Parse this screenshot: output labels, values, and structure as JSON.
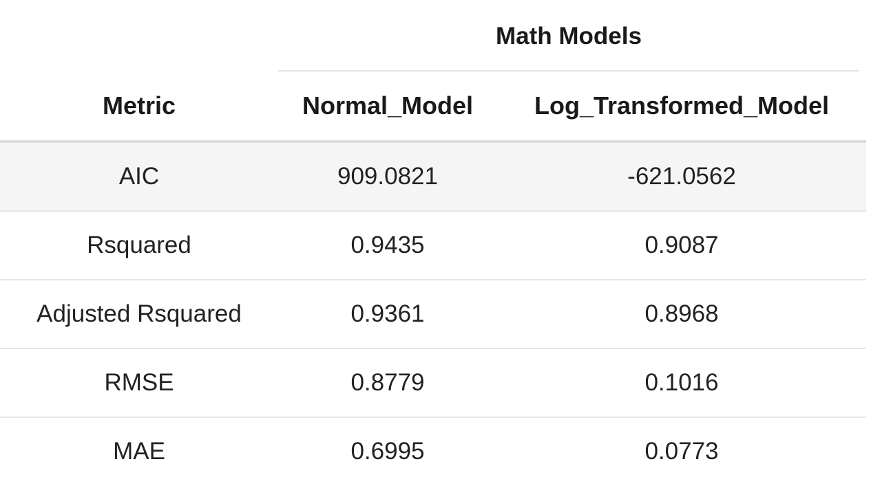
{
  "table": {
    "spanner_label": "Math Models",
    "columns": [
      "Metric",
      "Normal_Model",
      "Log_Transformed_Model"
    ],
    "rows": [
      {
        "metric": "AIC",
        "normal": "909.0821",
        "log": "-621.0562"
      },
      {
        "metric": "Rsquared",
        "normal": "0.9435",
        "log": "0.9087"
      },
      {
        "metric": "Adjusted Rsquared",
        "normal": "0.9361",
        "log": "0.8968"
      },
      {
        "metric": "RMSE",
        "normal": "0.8779",
        "log": "0.1016"
      },
      {
        "metric": "MAE",
        "normal": "0.6995",
        "log": "0.0773"
      }
    ]
  },
  "colors": {
    "first_row_shade": "#f5f5f5",
    "row_divider": "#e6e6e6",
    "header_divider": "#dddddd"
  }
}
